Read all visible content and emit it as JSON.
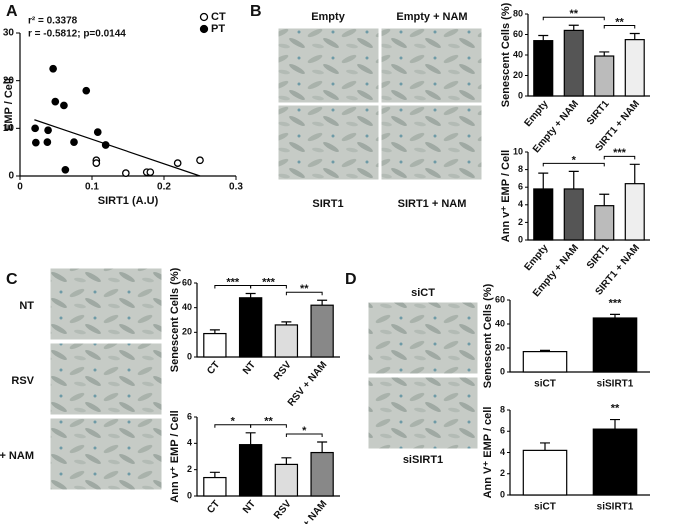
{
  "panel_labels": [
    "A",
    "B",
    "C",
    "D"
  ],
  "micrographs": {
    "B": [
      "Empty",
      "Empty + NAM",
      "SIRT1",
      "SIRT1 + NAM"
    ],
    "C": [
      "NT",
      "RSV",
      "RSV + NAM"
    ],
    "D": [
      "siCT",
      "siSIRT1"
    ]
  },
  "chart_data": [
    {
      "type": "scatter",
      "x_label": "SIRT1 (A.U)",
      "y_label": "EMP / Cell",
      "annotations": [
        "r² = 0.3378",
        "r = -0.5812; p=0.0144"
      ],
      "series": [
        {
          "name": "CT",
          "marker": "open",
          "color": "#000",
          "x": [
            0.106,
            0.106,
            0.147,
            0.176,
            0.181,
            0.219,
            0.25
          ],
          "y": [
            3.3,
            2.7,
            0.6,
            0.8,
            0.8,
            2.7,
            3.3
          ]
        },
        {
          "name": "PT",
          "marker": "filled",
          "color": "#000",
          "x": [
            0.046,
            0.049,
            0.061,
            0.092,
            0.039,
            0.038,
            0.075,
            0.108,
            0.119,
            0.063,
            0.021,
            0.022
          ],
          "y": [
            22.5,
            15.6,
            14.8,
            17.9,
            9.6,
            7.1,
            7.1,
            9.2,
            6.5,
            1.3,
            10,
            7
          ]
        }
      ],
      "fit_line": {
        "x": [
          0.02,
          0.25
        ],
        "y": [
          11.8,
          0
        ]
      },
      "xlim": [
        0,
        0.3
      ],
      "xticks": [
        0,
        0.1,
        0.2,
        0.3
      ],
      "ylim": [
        0,
        30
      ],
      "yticks": [
        0,
        10,
        20,
        30
      ],
      "legend": "upper right"
    },
    {
      "type": "bar",
      "y_label": "Senescent Cells (%)",
      "categories": [
        "Empty",
        "Empty + NAM",
        "SIRT1",
        "SIRT1 + NAM"
      ],
      "values": [
        54,
        64,
        39,
        55
      ],
      "errors": [
        5,
        5,
        4,
        6
      ],
      "colors": [
        "#000",
        "#555",
        "#bbb",
        "#eee"
      ],
      "ylim": [
        0,
        80
      ],
      "yticks": [
        0,
        20,
        40,
        60,
        80
      ],
      "significance": [
        {
          "pair": [
            "Empty",
            "SIRT1"
          ],
          "label": "**"
        },
        {
          "pair": [
            "SIRT1",
            "SIRT1 + NAM"
          ],
          "label": "**"
        }
      ]
    },
    {
      "type": "bar",
      "y_label": "Ann v⁺ EMP / Cell",
      "categories": [
        "Empty",
        "Empty + NAM",
        "SIRT1",
        "SIRT1 + NAM"
      ],
      "values": [
        5.8,
        5.8,
        3.9,
        6.4
      ],
      "errors": [
        1.8,
        2,
        1.3,
        2.2
      ],
      "colors": [
        "#000",
        "#555",
        "#bbb",
        "#eee"
      ],
      "ylim": [
        0,
        10
      ],
      "yticks": [
        0,
        2,
        4,
        6,
        8,
        10
      ],
      "significance": [
        {
          "pair": [
            "Empty",
            "SIRT1"
          ],
          "label": "*"
        },
        {
          "pair": [
            "SIRT1",
            "SIRT1 + NAM"
          ],
          "label": "***"
        }
      ]
    },
    {
      "type": "bar",
      "y_label": "Senescent Cells (%)",
      "categories": [
        "CT",
        "NT",
        "RSV",
        "RSV + NAM"
      ],
      "values": [
        19,
        48,
        26,
        42
      ],
      "errors": [
        3,
        3.5,
        2.5,
        4
      ],
      "colors": [
        "#fff",
        "#000",
        "#ddd",
        "#888"
      ],
      "ylim": [
        0,
        60
      ],
      "yticks": [
        0,
        20,
        40,
        60
      ],
      "significance": [
        {
          "pair": [
            "CT",
            "NT"
          ],
          "label": "***"
        },
        {
          "pair": [
            "NT",
            "RSV"
          ],
          "label": "***"
        },
        {
          "pair": [
            "RSV",
            "RSV + NAM"
          ],
          "label": "**"
        }
      ]
    },
    {
      "type": "bar",
      "y_label": "Ann v⁺ EMP / Cell",
      "categories": [
        "CT",
        "NT",
        "RSV",
        "RSV + NAM"
      ],
      "values": [
        1.4,
        3.9,
        2.4,
        3.3
      ],
      "errors": [
        0.4,
        0.9,
        0.5,
        0.8
      ],
      "colors": [
        "#fff",
        "#000",
        "#ddd",
        "#888"
      ],
      "ylim": [
        0,
        6
      ],
      "yticks": [
        0,
        2,
        4,
        6
      ],
      "significance": [
        {
          "pair": [
            "CT",
            "NT"
          ],
          "label": "*"
        },
        {
          "pair": [
            "NT",
            "RSV"
          ],
          "label": "**"
        },
        {
          "pair": [
            "RSV",
            "RSV + NAM"
          ],
          "label": "*"
        }
      ]
    },
    {
      "type": "bar",
      "y_label": "Senescent Cells (%)",
      "categories": [
        "siCT",
        "siSIRT1"
      ],
      "values": [
        17,
        45
      ],
      "errors": [
        1,
        3
      ],
      "colors": [
        "#fff",
        "#000"
      ],
      "ylim": [
        0,
        60
      ],
      "yticks": [
        0,
        20,
        40,
        60
      ],
      "significance": [
        {
          "pair": [
            "siSIRT1",
            "siSIRT1"
          ],
          "label": "***"
        }
      ]
    },
    {
      "type": "bar",
      "y_label": "Ann V⁺ EMP / cell",
      "categories": [
        "siCT",
        "siSIRT1"
      ],
      "values": [
        4.2,
        6.2
      ],
      "errors": [
        0.7,
        0.9
      ],
      "colors": [
        "#fff",
        "#000"
      ],
      "ylim": [
        0,
        8
      ],
      "yticks": [
        0,
        2,
        4,
        6,
        8
      ],
      "significance": [
        {
          "pair": [
            "siSIRT1",
            "siSIRT1"
          ],
          "label": "**"
        }
      ]
    }
  ]
}
